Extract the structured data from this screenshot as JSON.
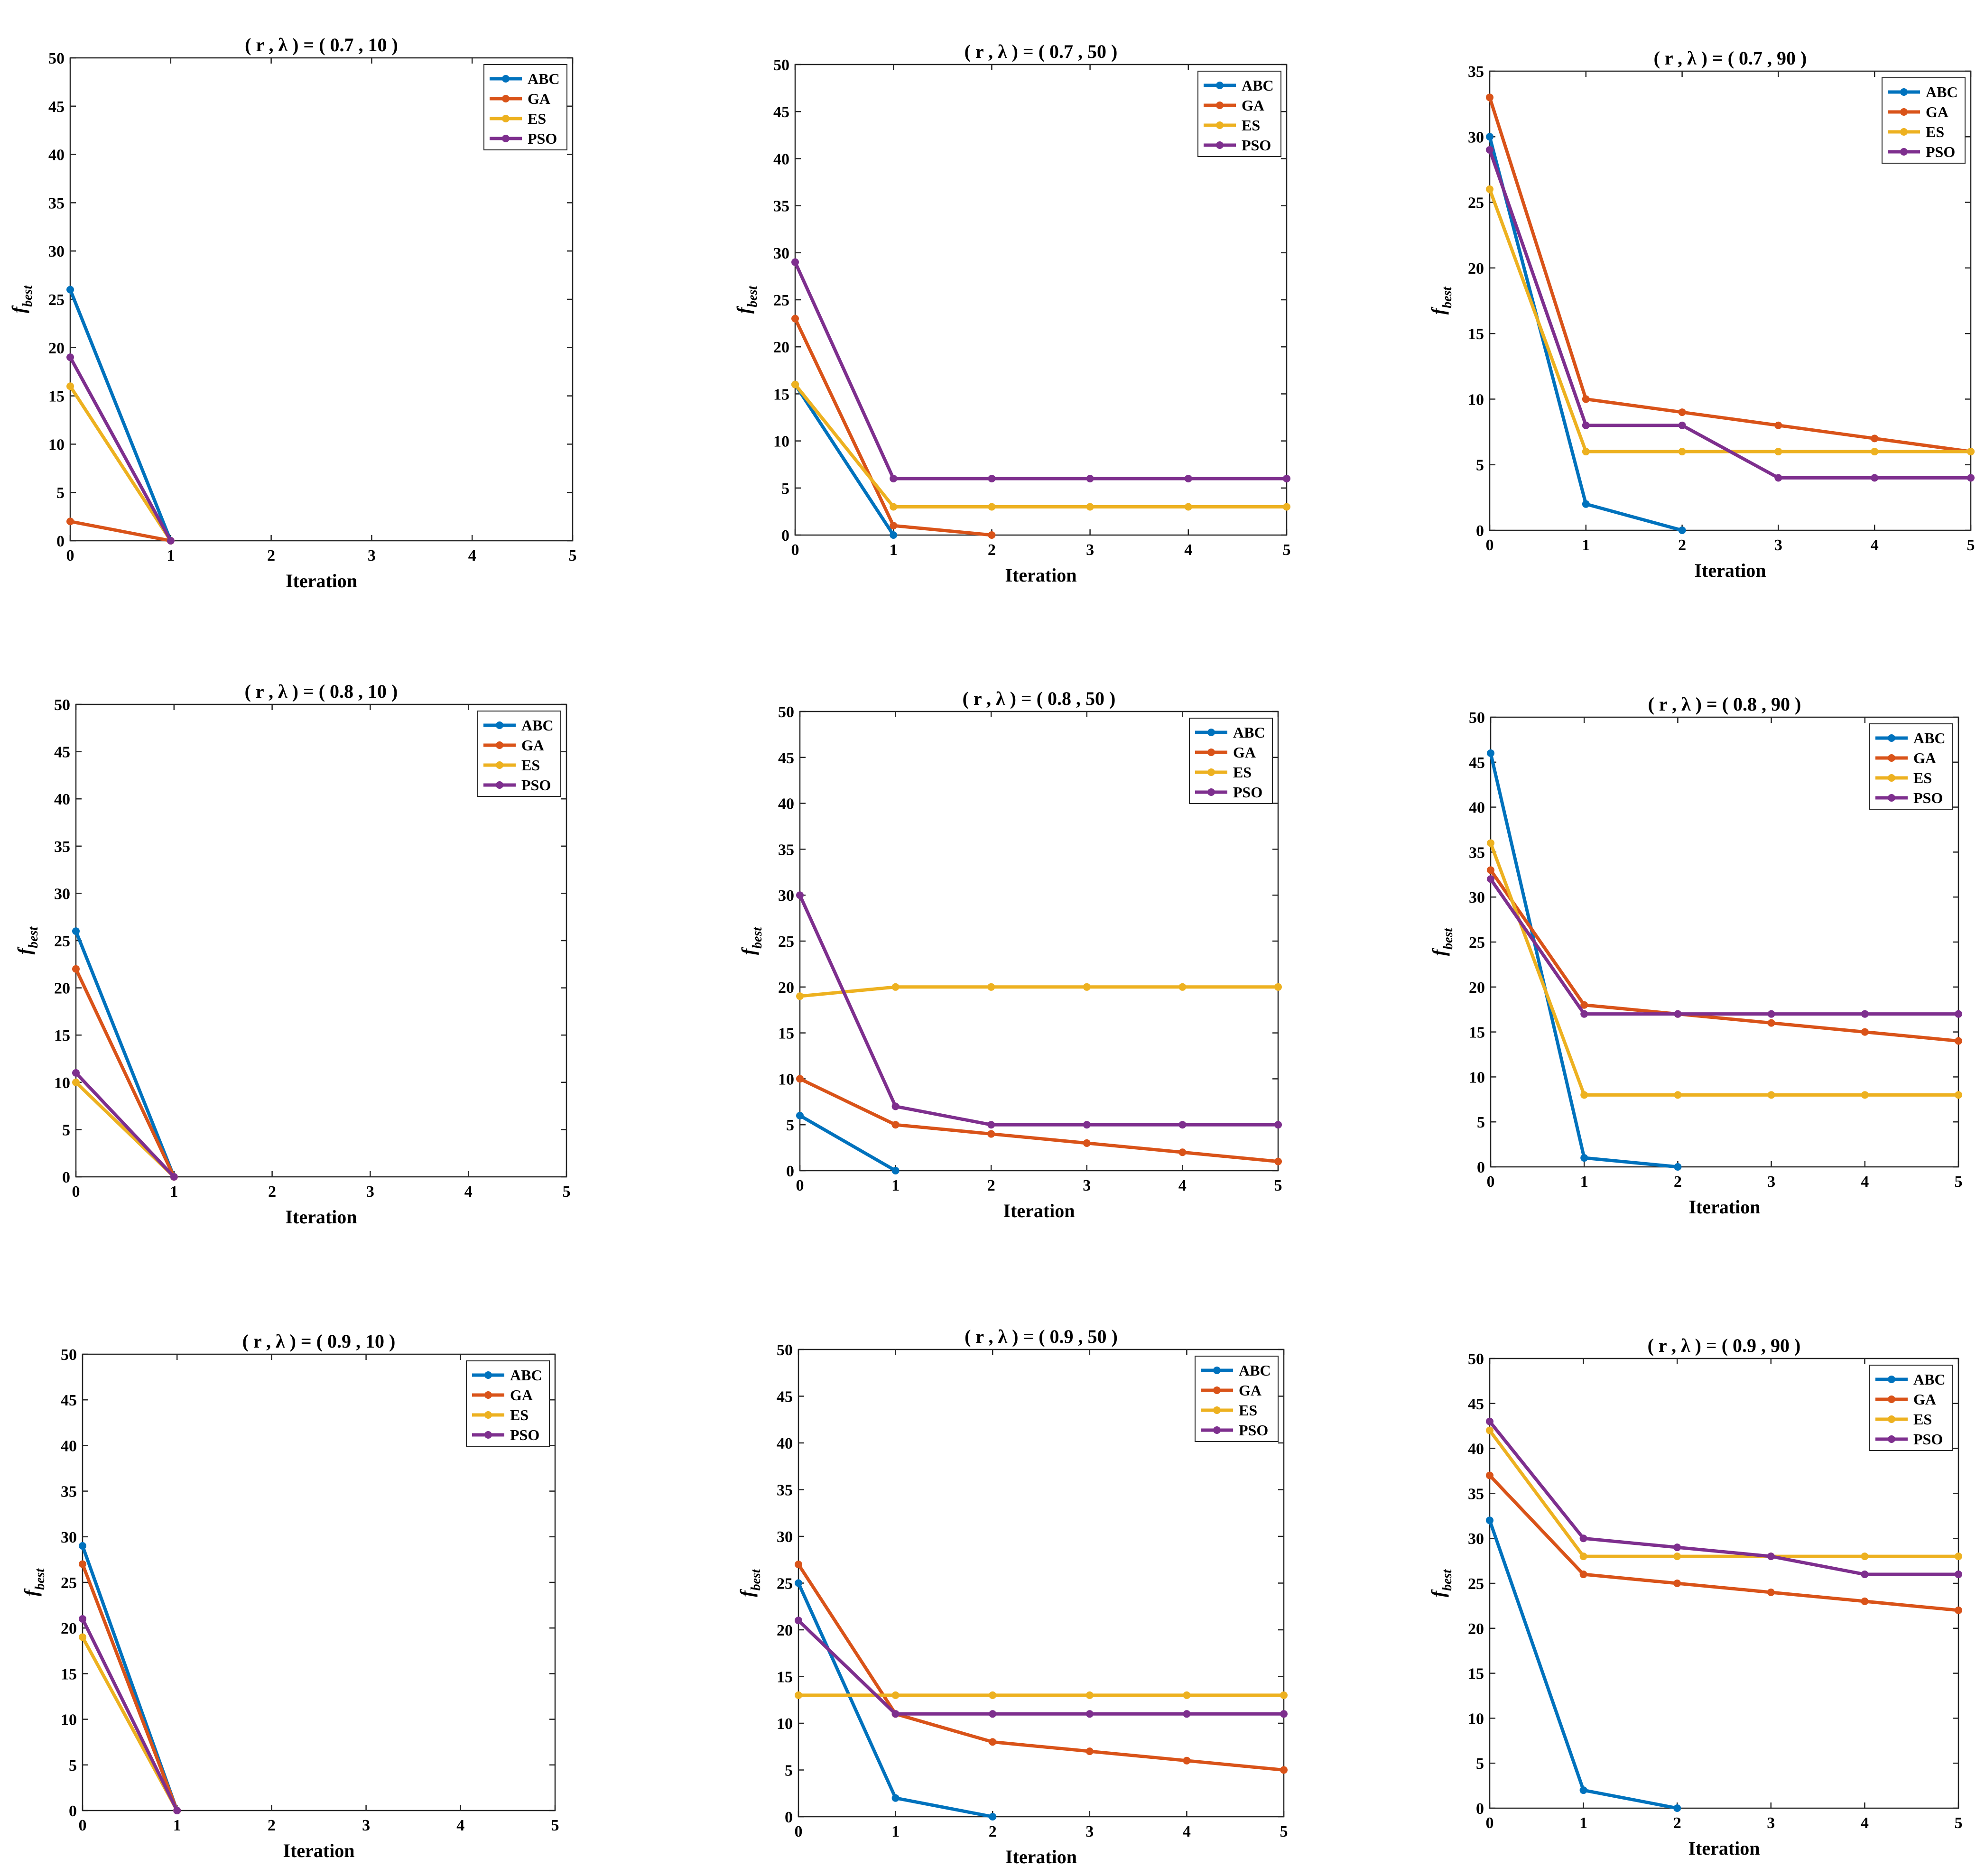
{
  "colors": {
    "ABC": "#0072BD",
    "GA": "#D95319",
    "ES": "#EDB120",
    "PSO": "#7E2F8E"
  },
  "chart_data": [
    {
      "type": "line",
      "title": "( r , λ ) = ( 0.7 , 10 )",
      "xlabel": "Iteration",
      "ylabel": "f",
      "ylabel_sub": "best",
      "xlim": [
        0,
        5
      ],
      "ylim": [
        0,
        50
      ],
      "xticks": [
        0,
        1,
        2,
        3,
        4,
        5
      ],
      "yticks": [
        0,
        5,
        10,
        15,
        20,
        25,
        30,
        35,
        40,
        45,
        50
      ],
      "legend": "top-right",
      "grid": false,
      "series": [
        {
          "name": "ABC",
          "x": [
            0,
            1
          ],
          "values": [
            26,
            0
          ]
        },
        {
          "name": "GA",
          "x": [
            0,
            1
          ],
          "values": [
            2,
            0
          ]
        },
        {
          "name": "ES",
          "x": [
            0,
            1
          ],
          "values": [
            16,
            0
          ]
        },
        {
          "name": "PSO",
          "x": [
            0,
            1
          ],
          "values": [
            19,
            0
          ]
        }
      ]
    },
    {
      "type": "line",
      "title": "( r , λ ) = ( 0.7 , 50 )",
      "xlabel": "Iteration",
      "ylabel": "f",
      "ylabel_sub": "best",
      "xlim": [
        0,
        5
      ],
      "ylim": [
        0,
        50
      ],
      "xticks": [
        0,
        1,
        2,
        3,
        4,
        5
      ],
      "yticks": [
        0,
        5,
        10,
        15,
        20,
        25,
        30,
        35,
        40,
        45,
        50
      ],
      "legend": "top-right",
      "grid": false,
      "series": [
        {
          "name": "ABC",
          "x": [
            0,
            1
          ],
          "values": [
            16,
            0
          ]
        },
        {
          "name": "GA",
          "x": [
            0,
            1,
            2
          ],
          "values": [
            23,
            1,
            0
          ]
        },
        {
          "name": "ES",
          "x": [
            0,
            1,
            2,
            3,
            4,
            5
          ],
          "values": [
            16,
            3,
            3,
            3,
            3,
            3
          ]
        },
        {
          "name": "PSO",
          "x": [
            0,
            1,
            2,
            3,
            4,
            5
          ],
          "values": [
            29,
            6,
            6,
            6,
            6,
            6
          ]
        }
      ]
    },
    {
      "type": "line",
      "title": "( r , λ ) = ( 0.7 , 90 )",
      "xlabel": "Iteration",
      "ylabel": "f",
      "ylabel_sub": "best",
      "xlim": [
        0,
        5
      ],
      "ylim": [
        0,
        35
      ],
      "xticks": [
        0,
        1,
        2,
        3,
        4,
        5
      ],
      "yticks": [
        0,
        5,
        10,
        15,
        20,
        25,
        30,
        35
      ],
      "legend": "top-right",
      "grid": false,
      "series": [
        {
          "name": "ABC",
          "x": [
            0,
            1,
            2
          ],
          "values": [
            30,
            2,
            0
          ]
        },
        {
          "name": "GA",
          "x": [
            0,
            1,
            2,
            3,
            4,
            5
          ],
          "values": [
            33,
            10,
            9,
            8,
            7,
            6
          ]
        },
        {
          "name": "ES",
          "x": [
            0,
            1,
            2,
            3,
            4,
            5
          ],
          "values": [
            26,
            6,
            6,
            6,
            6,
            6
          ]
        },
        {
          "name": "PSO",
          "x": [
            0,
            1,
            2,
            3,
            4,
            5
          ],
          "values": [
            29,
            8,
            8,
            4,
            4,
            4
          ]
        }
      ]
    },
    {
      "type": "line",
      "title": "( r , λ ) = ( 0.8 , 10 )",
      "xlabel": "Iteration",
      "ylabel": "f",
      "ylabel_sub": "best",
      "xlim": [
        0,
        5
      ],
      "ylim": [
        0,
        50
      ],
      "xticks": [
        0,
        1,
        2,
        3,
        4,
        5
      ],
      "yticks": [
        0,
        5,
        10,
        15,
        20,
        25,
        30,
        35,
        40,
        45,
        50
      ],
      "legend": "top-right",
      "grid": false,
      "series": [
        {
          "name": "ABC",
          "x": [
            0,
            1
          ],
          "values": [
            26,
            0
          ]
        },
        {
          "name": "GA",
          "x": [
            0,
            1
          ],
          "values": [
            22,
            0
          ]
        },
        {
          "name": "ES",
          "x": [
            0,
            1
          ],
          "values": [
            10,
            0
          ]
        },
        {
          "name": "PSO",
          "x": [
            0,
            1
          ],
          "values": [
            11,
            0
          ]
        }
      ]
    },
    {
      "type": "line",
      "title": "( r , λ ) = ( 0.8 , 50 )",
      "xlabel": "Iteration",
      "ylabel": "f",
      "ylabel_sub": "best",
      "xlim": [
        0,
        5
      ],
      "ylim": [
        0,
        50
      ],
      "xticks": [
        0,
        1,
        2,
        3,
        4,
        5
      ],
      "yticks": [
        0,
        5,
        10,
        15,
        20,
        25,
        30,
        35,
        40,
        45,
        50
      ],
      "legend": "top-right",
      "grid": false,
      "series": [
        {
          "name": "ABC",
          "x": [
            0,
            1
          ],
          "values": [
            6,
            0
          ]
        },
        {
          "name": "GA",
          "x": [
            0,
            1,
            2,
            3,
            4,
            5
          ],
          "values": [
            10,
            5,
            4,
            3,
            2,
            1
          ]
        },
        {
          "name": "ES",
          "x": [
            0,
            1,
            2,
            3,
            4,
            5
          ],
          "values": [
            19,
            20,
            20,
            20,
            20,
            20
          ]
        },
        {
          "name": "PSO",
          "x": [
            0,
            1,
            2,
            3,
            4,
            5
          ],
          "values": [
            30,
            7,
            5,
            5,
            5,
            5
          ]
        }
      ]
    },
    {
      "type": "line",
      "title": "( r , λ ) = ( 0.8 , 90 )",
      "xlabel": "Iteration",
      "ylabel": "f",
      "ylabel_sub": "best",
      "xlim": [
        0,
        5
      ],
      "ylim": [
        0,
        50
      ],
      "xticks": [
        0,
        1,
        2,
        3,
        4,
        5
      ],
      "yticks": [
        0,
        5,
        10,
        15,
        20,
        25,
        30,
        35,
        40,
        45,
        50
      ],
      "legend": "top-right",
      "grid": false,
      "series": [
        {
          "name": "ABC",
          "x": [
            0,
            1,
            2
          ],
          "values": [
            46,
            1,
            0
          ]
        },
        {
          "name": "GA",
          "x": [
            0,
            1,
            2,
            3,
            4,
            5
          ],
          "values": [
            33,
            18,
            17,
            16,
            15,
            14
          ]
        },
        {
          "name": "ES",
          "x": [
            0,
            1,
            2,
            3,
            4,
            5
          ],
          "values": [
            36,
            8,
            8,
            8,
            8,
            8
          ]
        },
        {
          "name": "PSO",
          "x": [
            0,
            1,
            2,
            3,
            4,
            5
          ],
          "values": [
            32,
            17,
            17,
            17,
            17,
            17
          ]
        }
      ]
    },
    {
      "type": "line",
      "title": "( r , λ ) = ( 0.9 , 10 )",
      "xlabel": "Iteration",
      "ylabel": "f",
      "ylabel_sub": "best",
      "xlim": [
        0,
        5
      ],
      "ylim": [
        0,
        50
      ],
      "xticks": [
        0,
        1,
        2,
        3,
        4,
        5
      ],
      "yticks": [
        0,
        5,
        10,
        15,
        20,
        25,
        30,
        35,
        40,
        45,
        50
      ],
      "legend": "top-right",
      "grid": false,
      "series": [
        {
          "name": "ABC",
          "x": [
            0,
            1
          ],
          "values": [
            29,
            0
          ]
        },
        {
          "name": "GA",
          "x": [
            0,
            1
          ],
          "values": [
            27,
            0
          ]
        },
        {
          "name": "ES",
          "x": [
            0,
            1
          ],
          "values": [
            19,
            0
          ]
        },
        {
          "name": "PSO",
          "x": [
            0,
            1
          ],
          "values": [
            21,
            0
          ]
        }
      ]
    },
    {
      "type": "line",
      "title": "( r , λ ) = ( 0.9 , 50 )",
      "xlabel": "Iteration",
      "ylabel": "f",
      "ylabel_sub": "best",
      "xlim": [
        0,
        5
      ],
      "ylim": [
        0,
        50
      ],
      "xticks": [
        0,
        1,
        2,
        3,
        4,
        5
      ],
      "yticks": [
        0,
        5,
        10,
        15,
        20,
        25,
        30,
        35,
        40,
        45,
        50
      ],
      "legend": "top-right",
      "grid": false,
      "series": [
        {
          "name": "ABC",
          "x": [
            0,
            1,
            2
          ],
          "values": [
            25,
            2,
            0
          ]
        },
        {
          "name": "GA",
          "x": [
            0,
            1,
            2,
            3,
            4,
            5
          ],
          "values": [
            27,
            11,
            8,
            7,
            6,
            5
          ]
        },
        {
          "name": "ES",
          "x": [
            0,
            1,
            2,
            3,
            4,
            5
          ],
          "values": [
            13,
            13,
            13,
            13,
            13,
            13
          ]
        },
        {
          "name": "PSO",
          "x": [
            0,
            1,
            2,
            3,
            4,
            5
          ],
          "values": [
            21,
            11,
            11,
            11,
            11,
            11
          ]
        }
      ]
    },
    {
      "type": "line",
      "title": "( r , λ ) = ( 0.9 , 90 )",
      "xlabel": "Iteration",
      "ylabel": "f",
      "ylabel_sub": "best",
      "xlim": [
        0,
        5
      ],
      "ylim": [
        0,
        50
      ],
      "xticks": [
        0,
        1,
        2,
        3,
        4,
        5
      ],
      "yticks": [
        0,
        5,
        10,
        15,
        20,
        25,
        30,
        35,
        40,
        45,
        50
      ],
      "legend": "top-right",
      "grid": false,
      "series": [
        {
          "name": "ABC",
          "x": [
            0,
            1,
            2
          ],
          "values": [
            32,
            2,
            0
          ]
        },
        {
          "name": "GA",
          "x": [
            0,
            1,
            2,
            3,
            4,
            5
          ],
          "values": [
            37,
            26,
            25,
            24,
            23,
            22
          ]
        },
        {
          "name": "ES",
          "x": [
            0,
            1,
            2,
            3,
            4,
            5
          ],
          "values": [
            42,
            28,
            28,
            28,
            28,
            28
          ]
        },
        {
          "name": "PSO",
          "x": [
            0,
            1,
            2,
            3,
            4,
            5
          ],
          "values": [
            43,
            30,
            29,
            28,
            26,
            26
          ]
        }
      ]
    }
  ]
}
